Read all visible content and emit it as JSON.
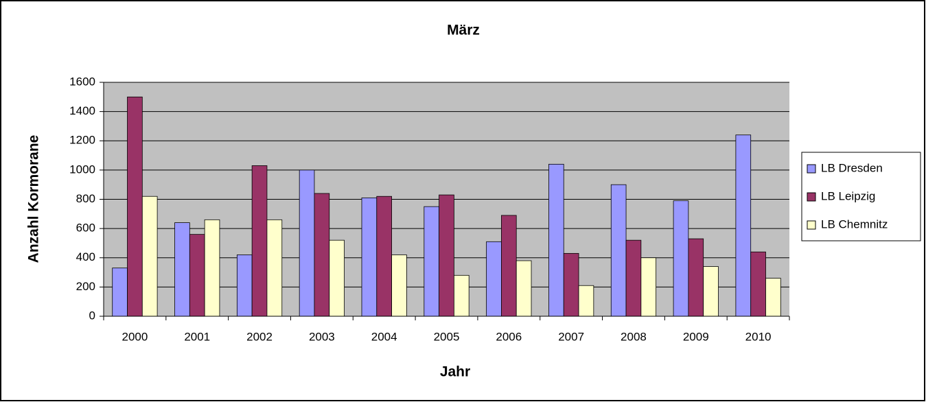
{
  "chart_data": {
    "type": "bar",
    "title": "März",
    "x_label": "Jahr",
    "y_label": "Anzahl Kormorane",
    "categories": [
      "2000",
      "2001",
      "2002",
      "2003",
      "2004",
      "2005",
      "2006",
      "2007",
      "2008",
      "2009",
      "2010"
    ],
    "series": [
      {
        "name": "LB Dresden",
        "color": "#9999ff",
        "values": [
          330,
          640,
          420,
          1000,
          810,
          750,
          510,
          1040,
          900,
          790,
          1240
        ]
      },
      {
        "name": "LB Leipzig",
        "color": "#993366",
        "values": [
          1500,
          560,
          1030,
          840,
          820,
          830,
          690,
          430,
          520,
          530,
          440
        ]
      },
      {
        "name": "LB Chemnitz",
        "color": "#ffffcc",
        "values": [
          820,
          660,
          660,
          520,
          420,
          280,
          380,
          210,
          400,
          340,
          260
        ]
      }
    ],
    "ylim": [
      0,
      1600
    ],
    "yticks": [
      0,
      200,
      400,
      600,
      800,
      1000,
      1200,
      1400,
      1600
    ],
    "grid": true,
    "legend": "right"
  }
}
